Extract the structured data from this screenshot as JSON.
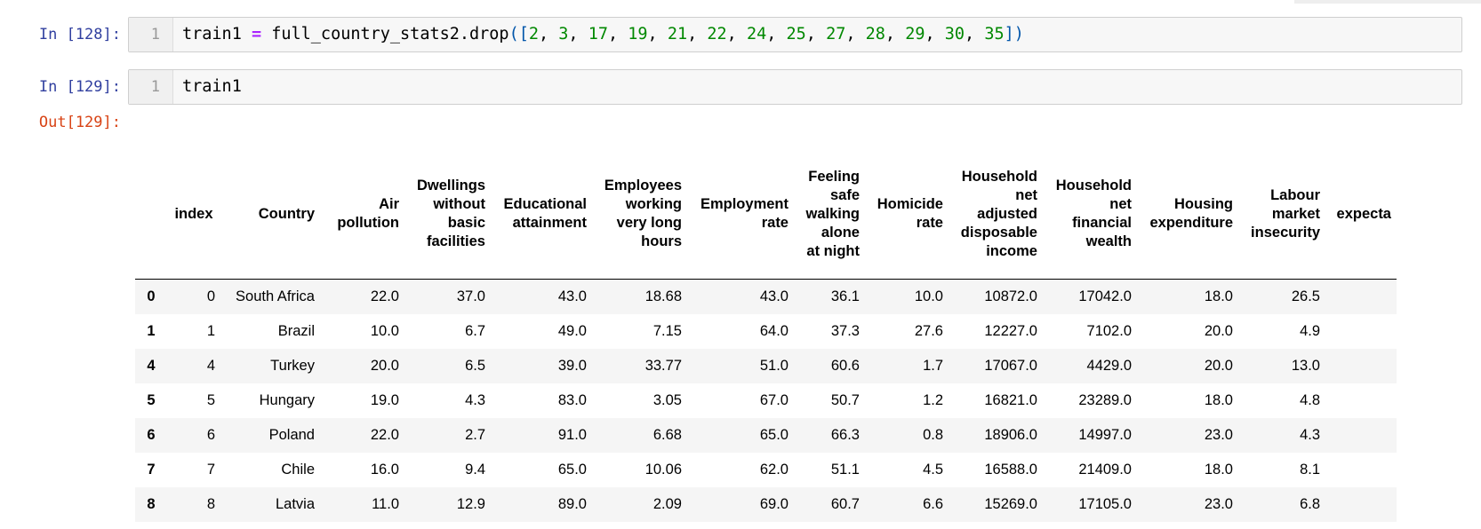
{
  "cells": [
    {
      "prompt": "In [128]:",
      "line_number": "1",
      "tokens": [
        {
          "t": "train1 ",
          "k": "plain"
        },
        {
          "t": "=",
          "k": "op"
        },
        {
          "t": " full_country_stats2.drop",
          "k": "plain"
        },
        {
          "t": "([",
          "k": "punct"
        },
        {
          "t": "2",
          "k": "num"
        },
        {
          "t": ", ",
          "k": "plain"
        },
        {
          "t": "3",
          "k": "num"
        },
        {
          "t": ", ",
          "k": "plain"
        },
        {
          "t": "17",
          "k": "num"
        },
        {
          "t": ", ",
          "k": "plain"
        },
        {
          "t": "19",
          "k": "num"
        },
        {
          "t": ", ",
          "k": "plain"
        },
        {
          "t": "21",
          "k": "num"
        },
        {
          "t": ", ",
          "k": "plain"
        },
        {
          "t": "22",
          "k": "num"
        },
        {
          "t": ", ",
          "k": "plain"
        },
        {
          "t": "24",
          "k": "num"
        },
        {
          "t": ", ",
          "k": "plain"
        },
        {
          "t": "25",
          "k": "num"
        },
        {
          "t": ", ",
          "k": "plain"
        },
        {
          "t": "27",
          "k": "num"
        },
        {
          "t": ", ",
          "k": "plain"
        },
        {
          "t": "28",
          "k": "num"
        },
        {
          "t": ", ",
          "k": "plain"
        },
        {
          "t": "29",
          "k": "num"
        },
        {
          "t": ", ",
          "k": "plain"
        },
        {
          "t": "30",
          "k": "num"
        },
        {
          "t": ", ",
          "k": "plain"
        },
        {
          "t": "35",
          "k": "num"
        },
        {
          "t": "])",
          "k": "punct"
        }
      ]
    },
    {
      "prompt": "In [129]:",
      "line_number": "1",
      "tokens": [
        {
          "t": "train1",
          "k": "plain"
        }
      ]
    }
  ],
  "output_prompt": "Out[129]:",
  "dataframe": {
    "columns": [
      "",
      "index",
      "Country",
      "Air\npollution",
      "Dwellings\nwithout\nbasic\nfacilities",
      "Educational\nattainment",
      "Employees\nworking\nvery long\nhours",
      "Employment\nrate",
      "Feeling\nsafe\nwalking\nalone\nat night",
      "Homicide\nrate",
      "Household\nnet\nadjusted\ndisposable\nincome",
      "Household\nnet\nfinancial\nwealth",
      "Housing\nexpenditure",
      "Labour\nmarket\ninsecurity",
      "expecta"
    ],
    "rows": [
      [
        "0",
        "0",
        "South Africa",
        "22.0",
        "37.0",
        "43.0",
        "18.68",
        "43.0",
        "36.1",
        "10.0",
        "10872.0",
        "17042.0",
        "18.0",
        "26.5",
        ""
      ],
      [
        "1",
        "1",
        "Brazil",
        "10.0",
        "6.7",
        "49.0",
        "7.15",
        "64.0",
        "37.3",
        "27.6",
        "12227.0",
        "7102.0",
        "20.0",
        "4.9",
        ""
      ],
      [
        "4",
        "4",
        "Turkey",
        "20.0",
        "6.5",
        "39.0",
        "33.77",
        "51.0",
        "60.6",
        "1.7",
        "17067.0",
        "4429.0",
        "20.0",
        "13.0",
        ""
      ],
      [
        "5",
        "5",
        "Hungary",
        "19.0",
        "4.3",
        "83.0",
        "3.05",
        "67.0",
        "50.7",
        "1.2",
        "16821.0",
        "23289.0",
        "18.0",
        "4.8",
        ""
      ],
      [
        "6",
        "6",
        "Poland",
        "22.0",
        "2.7",
        "91.0",
        "6.68",
        "65.0",
        "66.3",
        "0.8",
        "18906.0",
        "14997.0",
        "23.0",
        "4.3",
        ""
      ],
      [
        "7",
        "7",
        "Chile",
        "16.0",
        "9.4",
        "65.0",
        "10.06",
        "62.0",
        "51.1",
        "4.5",
        "16588.0",
        "21409.0",
        "18.0",
        "8.1",
        ""
      ],
      [
        "8",
        "8",
        "Latvia",
        "11.0",
        "12.9",
        "89.0",
        "2.09",
        "69.0",
        "60.7",
        "6.6",
        "15269.0",
        "17105.0",
        "23.0",
        "6.8",
        ""
      ]
    ]
  }
}
